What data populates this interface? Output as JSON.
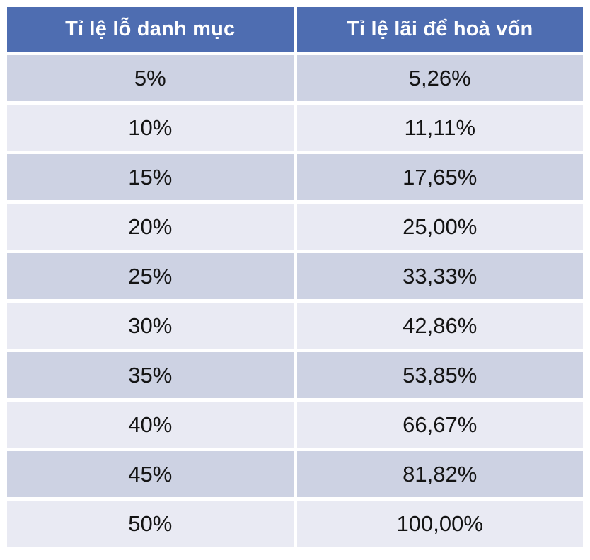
{
  "table": {
    "columns": [
      "Tỉ lệ lỗ danh mục",
      "Tỉ lệ lãi để hoà vốn"
    ],
    "rows": [
      [
        "5%",
        "5,26%"
      ],
      [
        "10%",
        "11,11%"
      ],
      [
        "15%",
        "17,65%"
      ],
      [
        "20%",
        "25,00%"
      ],
      [
        "25%",
        "33,33%"
      ],
      [
        "30%",
        "42,86%"
      ],
      [
        "35%",
        "53,85%"
      ],
      [
        "40%",
        "66,67%"
      ],
      [
        "45%",
        "81,82%"
      ],
      [
        "50%",
        "100,00%"
      ]
    ]
  },
  "colors": {
    "header_bg": "#4E6DB1",
    "header_text": "#FFFFFF",
    "band_dark_bg": "#CDD2E3",
    "band_light_bg": "#E9EAF3",
    "cell_text": "#141414",
    "page_bg": "#FFFFFF"
  },
  "chart_data": {
    "type": "table",
    "title": "",
    "columns": [
      "Tỉ lệ lỗ danh mục",
      "Tỉ lệ lãi để hoà vốn"
    ],
    "rows": [
      [
        "5%",
        "5,26%"
      ],
      [
        "10%",
        "11,11%"
      ],
      [
        "15%",
        "17,65%"
      ],
      [
        "20%",
        "25,00%"
      ],
      [
        "25%",
        "33,33%"
      ],
      [
        "30%",
        "42,86%"
      ],
      [
        "35%",
        "53,85%"
      ],
      [
        "40%",
        "66,67%"
      ],
      [
        "45%",
        "81,82%"
      ],
      [
        "50%",
        "100,00%"
      ]
    ],
    "loss_percent": [
      5,
      10,
      15,
      20,
      25,
      30,
      35,
      40,
      45,
      50
    ],
    "breakeven_gain_percent": [
      5.26,
      11.11,
      17.65,
      25.0,
      33.33,
      42.86,
      53.85,
      66.67,
      81.82,
      100.0
    ]
  }
}
